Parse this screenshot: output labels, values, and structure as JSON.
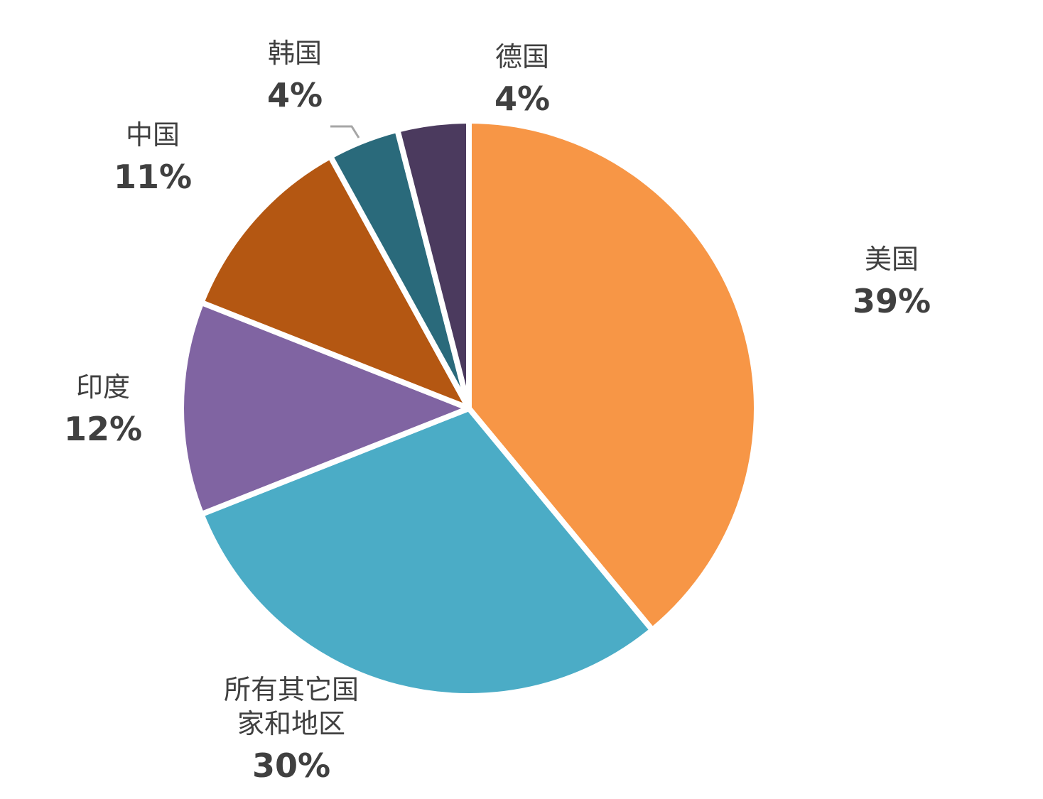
{
  "chart_data": {
    "type": "pie",
    "categories": [
      "美国",
      "所有其它国家和地区",
      "印度",
      "中国",
      "韩国",
      "德国"
    ],
    "values": [
      39,
      30,
      12,
      11,
      4,
      4
    ],
    "value_labels": [
      "39%",
      "30%",
      "12%",
      "11%",
      "4%",
      "4%"
    ],
    "colors": [
      "#f79646",
      "#4bacc6",
      "#8064a2",
      "#b45712",
      "#2a6a7b",
      "#4b3a5e"
    ]
  }
}
